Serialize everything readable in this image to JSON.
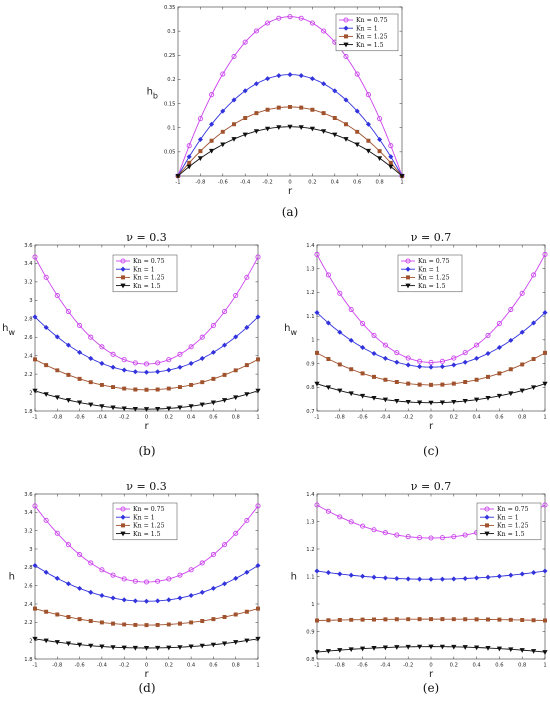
{
  "chart_data": [
    {
      "type": "line",
      "panel_label": "(a)",
      "title": "",
      "xlabel": "r",
      "ylabel": "h_b",
      "xlim": [
        -1,
        1
      ],
      "ylim": [
        0,
        0.35
      ],
      "x_ticks": [
        -1,
        -0.8,
        -0.6,
        -0.4,
        -0.2,
        0,
        0.2,
        0.4,
        0.6,
        0.8,
        1
      ],
      "x_tick_labels": [
        "-1",
        "-0.8",
        "-0.6",
        "-0.4",
        "-0.2",
        "0",
        "0.2",
        "0.4",
        "0.6",
        "0.8",
        "1"
      ],
      "y_ticks": [
        0.05,
        0.1,
        0.15,
        0.2,
        0.25,
        0.3,
        0.35
      ],
      "y_tick_labels": [
        "0.05",
        "0.1",
        "0.15",
        "0.2",
        "0.25",
        "0.3",
        "0.35"
      ],
      "legend_position": "top-right",
      "shape": "parabola",
      "series": [
        {
          "name": "Kn = 0.75",
          "color": "#cc44ee",
          "marker": "circle",
          "center": 0.33,
          "edge": 0
        },
        {
          "name": "Kn = 1",
          "color": "#3333dd",
          "marker": "diamond",
          "center": 0.21,
          "edge": 0
        },
        {
          "name": "Kn = 1.25",
          "color": "#a0522d",
          "marker": "square",
          "center": 0.143,
          "edge": 0
        },
        {
          "name": "Kn = 1.5",
          "color": "#111111",
          "marker": "triangle-down",
          "center": 0.102,
          "edge": 0
        }
      ]
    },
    {
      "type": "line",
      "panel_label": "(b)",
      "title": "ν = 0.3",
      "xlabel": "r",
      "ylabel": "h_w",
      "xlim": [
        -1,
        1
      ],
      "ylim": [
        1.8,
        3.6
      ],
      "x_ticks": [
        -1,
        -0.8,
        -0.6,
        -0.4,
        -0.2,
        0,
        0.2,
        0.4,
        0.6,
        0.8,
        1
      ],
      "x_tick_labels": [
        "-1",
        "-0.8",
        "-0.6",
        "-0.4",
        "-0.2",
        "0",
        "0.2",
        "0.4",
        "0.6",
        "0.8",
        "1"
      ],
      "y_ticks": [
        1.8,
        2,
        2.2,
        2.4,
        2.6,
        2.8,
        3,
        3.2,
        3.4,
        3.6
      ],
      "y_tick_labels": [
        "1.8",
        "2",
        "2.2",
        "2.4",
        "2.6",
        "2.8",
        "3",
        "3.2",
        "3.4",
        "3.6"
      ],
      "legend_position": "top-center",
      "shape": "parabola",
      "series": [
        {
          "name": "Kn = 0.75",
          "color": "#cc44ee",
          "marker": "circle",
          "center": 2.31,
          "edge": 3.47
        },
        {
          "name": "Kn = 1",
          "color": "#3333dd",
          "marker": "diamond",
          "center": 2.22,
          "edge": 2.82
        },
        {
          "name": "Kn = 1.25",
          "color": "#a0522d",
          "marker": "square",
          "center": 2.03,
          "edge": 2.36
        },
        {
          "name": "Kn = 1.5",
          "color": "#111111",
          "marker": "triangle-down",
          "center": 1.82,
          "edge": 2.02
        }
      ]
    },
    {
      "type": "line",
      "panel_label": "(c)",
      "title": "ν = 0.7",
      "xlabel": "r",
      "ylabel": "h_w",
      "xlim": [
        -1,
        1
      ],
      "ylim": [
        0.7,
        1.4
      ],
      "x_ticks": [
        -1,
        -0.8,
        -0.6,
        -0.4,
        -0.2,
        0,
        0.2,
        0.4,
        0.6,
        0.8,
        1
      ],
      "x_tick_labels": [
        "-1",
        "-0.8",
        "-0.6",
        "-0.4",
        "-0.2",
        "0",
        "0.2",
        "0.4",
        "0.6",
        "0.8",
        "1"
      ],
      "y_ticks": [
        0.7,
        0.8,
        0.9,
        1,
        1.1,
        1.2,
        1.3,
        1.4
      ],
      "y_tick_labels": [
        "0.7",
        "0.8",
        "0.9",
        "1",
        "1.1",
        "1.2",
        "1.3",
        "1.4"
      ],
      "legend_position": "top-center",
      "shape": "parabola",
      "series": [
        {
          "name": "Kn = 0.75",
          "color": "#cc44ee",
          "marker": "circle",
          "center": 0.905,
          "edge": 1.36
        },
        {
          "name": "Kn = 1",
          "color": "#3333dd",
          "marker": "diamond",
          "center": 0.885,
          "edge": 1.115
        },
        {
          "name": "Kn = 1.25",
          "color": "#a0522d",
          "marker": "square",
          "center": 0.81,
          "edge": 0.945
        },
        {
          "name": "Kn = 1.5",
          "color": "#111111",
          "marker": "triangle-down",
          "center": 0.735,
          "edge": 0.815
        }
      ]
    },
    {
      "type": "line",
      "panel_label": "(d)",
      "title": "ν = 0.3",
      "xlabel": "r",
      "ylabel": "h",
      "xlim": [
        -1,
        1
      ],
      "ylim": [
        1.8,
        3.6
      ],
      "x_ticks": [
        -1,
        -0.8,
        -0.6,
        -0.4,
        -0.2,
        0,
        0.2,
        0.4,
        0.6,
        0.8,
        1
      ],
      "x_tick_labels": [
        "-1",
        "-0.8",
        "-0.6",
        "-0.4",
        "-0.2",
        "0",
        "0.2",
        "0.4",
        "0.6",
        "0.8",
        "1"
      ],
      "y_ticks": [
        1.8,
        2,
        2.2,
        2.4,
        2.6,
        2.8,
        3,
        3.2,
        3.4,
        3.6
      ],
      "y_tick_labels": [
        "1.8",
        "2",
        "2.2",
        "2.4",
        "2.6",
        "2.8",
        "3",
        "3.2",
        "3.4",
        "3.6"
      ],
      "legend_position": "top-center",
      "shape": "parabola",
      "series": [
        {
          "name": "Kn = 0.75",
          "color": "#cc44ee",
          "marker": "circle",
          "center": 2.64,
          "edge": 3.47
        },
        {
          "name": "Kn = 1",
          "color": "#3333dd",
          "marker": "diamond",
          "center": 2.43,
          "edge": 2.82
        },
        {
          "name": "Kn = 1.25",
          "color": "#a0522d",
          "marker": "square",
          "center": 2.17,
          "edge": 2.35
        },
        {
          "name": "Kn = 1.5",
          "color": "#111111",
          "marker": "triangle-down",
          "center": 1.92,
          "edge": 2.02
        }
      ]
    },
    {
      "type": "line",
      "panel_label": "(e)",
      "title": "ν = 0.7",
      "xlabel": "r",
      "ylabel": "h",
      "xlim": [
        -1,
        1
      ],
      "ylim": [
        0.8,
        1.4
      ],
      "x_ticks": [
        -1,
        -0.8,
        -0.6,
        -0.4,
        -0.2,
        0,
        0.2,
        0.4,
        0.6,
        0.8,
        1
      ],
      "x_tick_labels": [
        "-1",
        "-0.8",
        "-0.6",
        "-0.4",
        "-0.2",
        "0",
        "0.2",
        "0.4",
        "0.6",
        "0.8",
        "1"
      ],
      "y_ticks": [
        0.8,
        0.9,
        1,
        1.1,
        1.2,
        1.3,
        1.4
      ],
      "y_tick_labels": [
        "0.8",
        "0.9",
        "1",
        "1.1",
        "1.2",
        "1.3",
        "1.4"
      ],
      "legend_position": "top-right",
      "shape": "parabola",
      "series": [
        {
          "name": "Kn = 0.75",
          "color": "#cc44ee",
          "marker": "circle",
          "center": 1.24,
          "edge": 1.36
        },
        {
          "name": "Kn = 1",
          "color": "#3333dd",
          "marker": "diamond",
          "center": 1.09,
          "edge": 1.12
        },
        {
          "name": "Kn = 1.25",
          "color": "#a0522d",
          "marker": "square",
          "center": 0.945,
          "edge": 0.94
        },
        {
          "name": "Kn = 1.5",
          "color": "#111111",
          "marker": "triangle-down",
          "center": 0.845,
          "edge": 0.825
        }
      ]
    }
  ]
}
